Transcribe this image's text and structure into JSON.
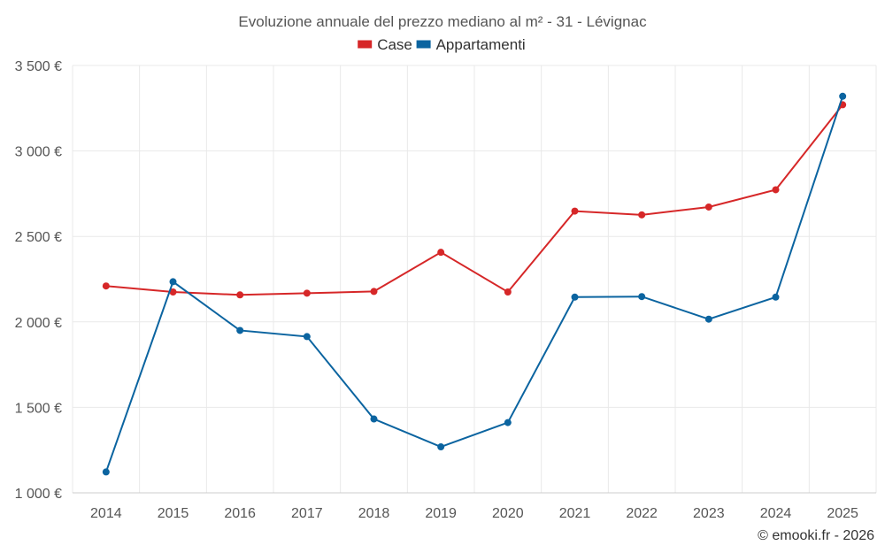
{
  "chart_data": {
    "type": "line",
    "title": "Evoluzione annuale del prezzo mediano al m² - 31 - Lévignac",
    "xlabel": "",
    "ylabel": "",
    "categories": [
      "2014",
      "2015",
      "2016",
      "2017",
      "2018",
      "2019",
      "2020",
      "2021",
      "2022",
      "2023",
      "2024",
      "2025"
    ],
    "ylim": [
      1000,
      3500
    ],
    "yticks": [
      1000,
      1500,
      2000,
      2500,
      3000,
      3500
    ],
    "ytick_labels": [
      "1 000 €",
      "1 500 €",
      "2 000 €",
      "2 500 €",
      "3 000 €",
      "3 500 €"
    ],
    "grid": true,
    "legend_position": "top-center",
    "series": [
      {
        "name": "Case",
        "color": "#d62728",
        "values": [
          2210,
          2175,
          2158,
          2168,
          2178,
          2407,
          2175,
          2648,
          2626,
          2672,
          2773,
          3270
        ]
      },
      {
        "name": "Appartamenti",
        "color": "#0b64a0",
        "values": [
          1122,
          2235,
          1950,
          1914,
          1432,
          1269,
          1411,
          2145,
          2148,
          2016,
          2145,
          3320
        ]
      }
    ],
    "credit": "© emooki.fr - 2026"
  }
}
